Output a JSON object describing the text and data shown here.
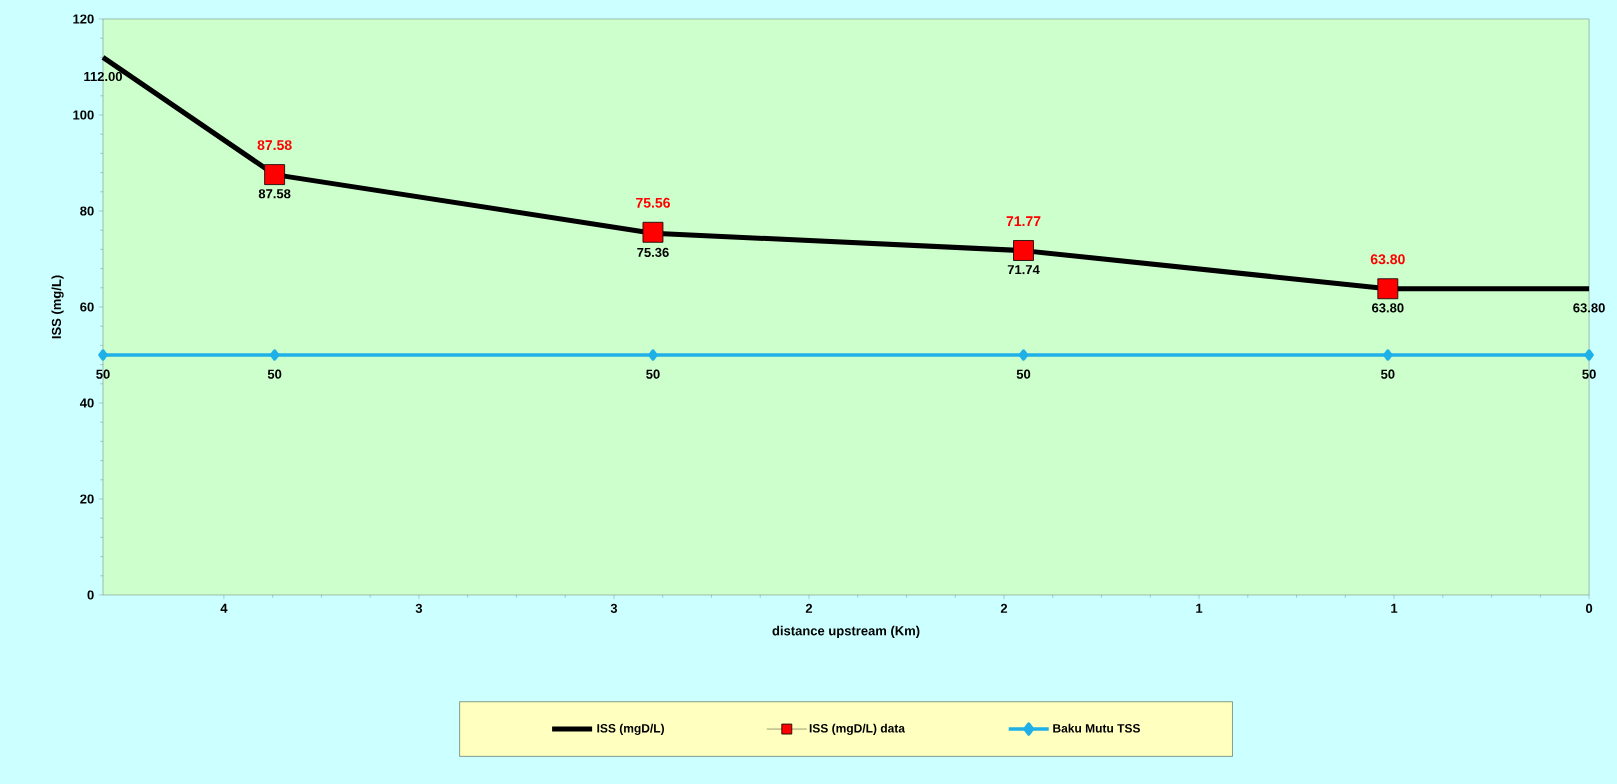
{
  "chart_data": {
    "type": "line",
    "xlabel": "distance upstream (Km)",
    "ylabel": "ISS (mg/L)",
    "xlim": [
      3.81,
      0
    ],
    "ylim": [
      0,
      120
    ],
    "xticks": [
      {
        "value": 3.5,
        "label": "4"
      },
      {
        "value": 3,
        "label": "3"
      },
      {
        "value": 2.5,
        "label": "3"
      },
      {
        "value": 2,
        "label": "2"
      },
      {
        "value": 1.5,
        "label": "2"
      },
      {
        "value": 1,
        "label": "1"
      },
      {
        "value": 0.5,
        "label": "1"
      },
      0
    ],
    "yticks": [
      0,
      20,
      40,
      60,
      80,
      100,
      120
    ],
    "grid": false,
    "legend": "bottom",
    "series": [
      {
        "name": "ISS (mgD/L)",
        "color": "#000000",
        "marker": "none",
        "x": [
          3.81,
          3.37,
          2.4,
          1.45,
          0.516,
          0
        ],
        "values": [
          112.0,
          87.58,
          75.36,
          71.74,
          63.8,
          63.8
        ],
        "value_labels": [
          "112.00",
          "87.58",
          "75.36",
          "71.74",
          "63.80",
          "63.80"
        ]
      },
      {
        "name": "ISS (mgD/L) data",
        "type": "scatter",
        "color": "#ff0000",
        "marker": "square",
        "x": [
          3.37,
          2.4,
          1.45,
          0.516
        ],
        "values": [
          87.58,
          75.56,
          71.77,
          63.8
        ],
        "value_labels": [
          "87.58",
          "75.56",
          "71.77",
          "63.80"
        ]
      },
      {
        "name": "Baku Mutu TSS",
        "color": "#1fb0e8",
        "marker": "diamond",
        "x": [
          3.81,
          3.37,
          2.4,
          1.45,
          0.516,
          0
        ],
        "values": [
          50,
          50,
          50,
          50,
          50,
          50
        ],
        "value_labels": [
          "50",
          "50",
          "50",
          "50",
          "50",
          "50"
        ]
      }
    ]
  }
}
